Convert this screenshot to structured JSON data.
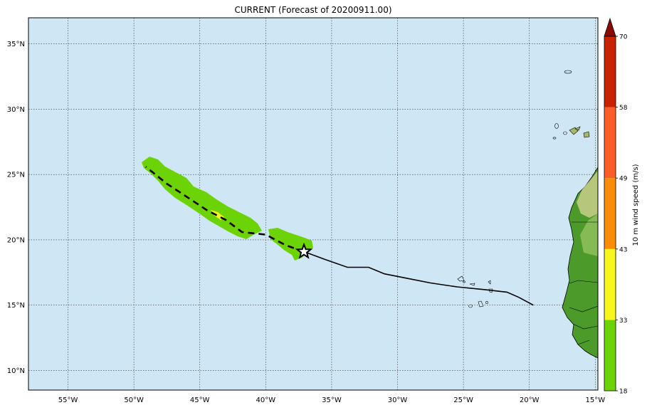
{
  "title": "CURRENT (Forecast of 20200911.00)",
  "map": {
    "lon_range": [
      -58,
      -14.8
    ],
    "lat_range": [
      8.5,
      37
    ],
    "ocean_color": "#cfe6f5",
    "land_color": "#4c9b2a",
    "lat_ticks": [
      {
        "value": 35,
        "label": "35°N"
      },
      {
        "value": 30,
        "label": "30°N"
      },
      {
        "value": 25,
        "label": "25°N"
      },
      {
        "value": 20,
        "label": "20°N"
      },
      {
        "value": 15,
        "label": "15°N"
      },
      {
        "value": 10,
        "label": "10°N"
      }
    ],
    "lon_ticks": [
      {
        "value": -55,
        "label": "55°W"
      },
      {
        "value": -50,
        "label": "50°W"
      },
      {
        "value": -45,
        "label": "45°W"
      },
      {
        "value": -40,
        "label": "40°W"
      },
      {
        "value": -35,
        "label": "35°W"
      },
      {
        "value": -30,
        "label": "30°W"
      },
      {
        "value": -25,
        "label": "25°W"
      },
      {
        "value": -20,
        "label": "20°W"
      },
      {
        "value": -15,
        "label": "15°W"
      }
    ],
    "past_track": [
      [
        -19.7,
        15.0
      ],
      [
        -20.8,
        15.6
      ],
      [
        -21.7,
        16.0
      ],
      [
        -23.5,
        16.2
      ],
      [
        -25.5,
        16.4
      ],
      [
        -27.5,
        16.7
      ],
      [
        -29.5,
        17.1
      ],
      [
        -31.0,
        17.4
      ],
      [
        -32.2,
        17.9
      ],
      [
        -33.8,
        17.9
      ],
      [
        -35.5,
        18.5
      ],
      [
        -37.1,
        19.1
      ]
    ],
    "forecast_track": [
      [
        -37.1,
        19.1
      ],
      [
        -38.5,
        19.6
      ],
      [
        -40.0,
        20.4
      ],
      [
        -41.8,
        20.6
      ],
      [
        -43.0,
        21.5
      ],
      [
        -44.5,
        22.3
      ],
      [
        -46.0,
        23.3
      ],
      [
        -47.5,
        24.3
      ],
      [
        -49.1,
        25.6
      ]
    ],
    "current_position": [
      -37.1,
      19.1
    ]
  },
  "colorbar": {
    "label": "10 m wind speed (m/s)",
    "levels": [
      18,
      33,
      43,
      49,
      58,
      70
    ],
    "colors": [
      "#6cd406",
      "#f7f71b",
      "#fb8c07",
      "#fd5d27",
      "#c82200"
    ],
    "extend_color": "#8a0a0a",
    "tick_labels": [
      "18",
      "33",
      "43",
      "49",
      "58",
      "70"
    ]
  }
}
